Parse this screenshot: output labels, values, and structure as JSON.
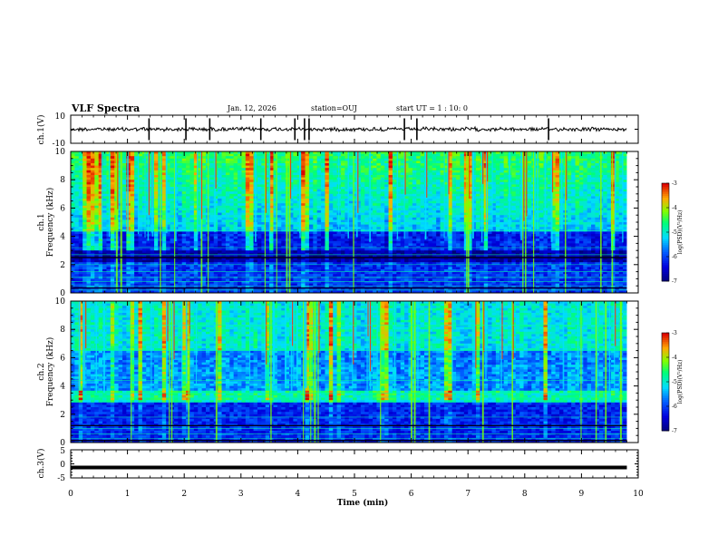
{
  "header": {
    "title": "VLF Spectra",
    "date": "Jan. 12, 2026",
    "station": "station=OUJ",
    "start": "start UT =  1 : 10: 0"
  },
  "chart_data": [
    {
      "type": "line",
      "name": "ch1-waveform",
      "ylabel": "ch.1(V)",
      "ylim": [
        -10,
        10
      ],
      "yticks": [
        "10",
        "-10"
      ],
      "baseline_level": 0,
      "spike_times_min": [
        1.38,
        2.03,
        2.45,
        3.35,
        3.95,
        4.12,
        4.2,
        5.88,
        6.1,
        8.42
      ]
    },
    {
      "type": "heatmap",
      "name": "ch1-spectrogram",
      "ylabel": "ch.1\nFrequency (kHz)",
      "ylabel_top": "ch.1",
      "ylabel_bottom": "Frequency (kHz)",
      "ylim": [
        0,
        10
      ],
      "xlim": [
        0,
        10
      ],
      "yticks": [
        "0",
        "2",
        "4",
        "6",
        "8",
        "10"
      ],
      "data_extent_min": 9.8,
      "colorbar": {
        "title": "log(PSD)(V²/Hz)",
        "ticks": [
          "-3",
          "-4",
          "-5",
          "-6",
          "-7"
        ],
        "range": [
          -7,
          -3
        ]
      }
    },
    {
      "type": "heatmap",
      "name": "ch2-spectrogram",
      "ylabel": "ch.2\nFrequency (kHz)",
      "ylabel_top": "ch.2",
      "ylabel_bottom": "Frequency (kHz)",
      "ylim": [
        0,
        10
      ],
      "xlim": [
        0,
        10
      ],
      "yticks": [
        "0",
        "2",
        "4",
        "6",
        "8",
        "10"
      ],
      "data_extent_min": 9.8,
      "colorbar": {
        "title": "log(PSD)(V²/Hz)",
        "ticks": [
          "-3",
          "-4",
          "-5",
          "-6",
          "-7"
        ],
        "range": [
          -7,
          -3
        ]
      }
    },
    {
      "type": "line",
      "name": "ch3-waveform",
      "ylabel": "ch.3(V)",
      "ylim": [
        -5,
        5
      ],
      "yticks": [
        "5",
        "0",
        "-5"
      ],
      "level": -1.3,
      "xlabel": "Time (min)",
      "xticks": [
        "0",
        "1",
        "2",
        "3",
        "4",
        "5",
        "6",
        "7",
        "8",
        "9",
        "10"
      ],
      "xlim": [
        0,
        10
      ]
    }
  ],
  "colors": {
    "spec_low": "#00008f",
    "spec_mid": "#00c8ff",
    "spec_high": "#7fff00",
    "spec_peak": "#ff2000",
    "trace": "#000000"
  }
}
